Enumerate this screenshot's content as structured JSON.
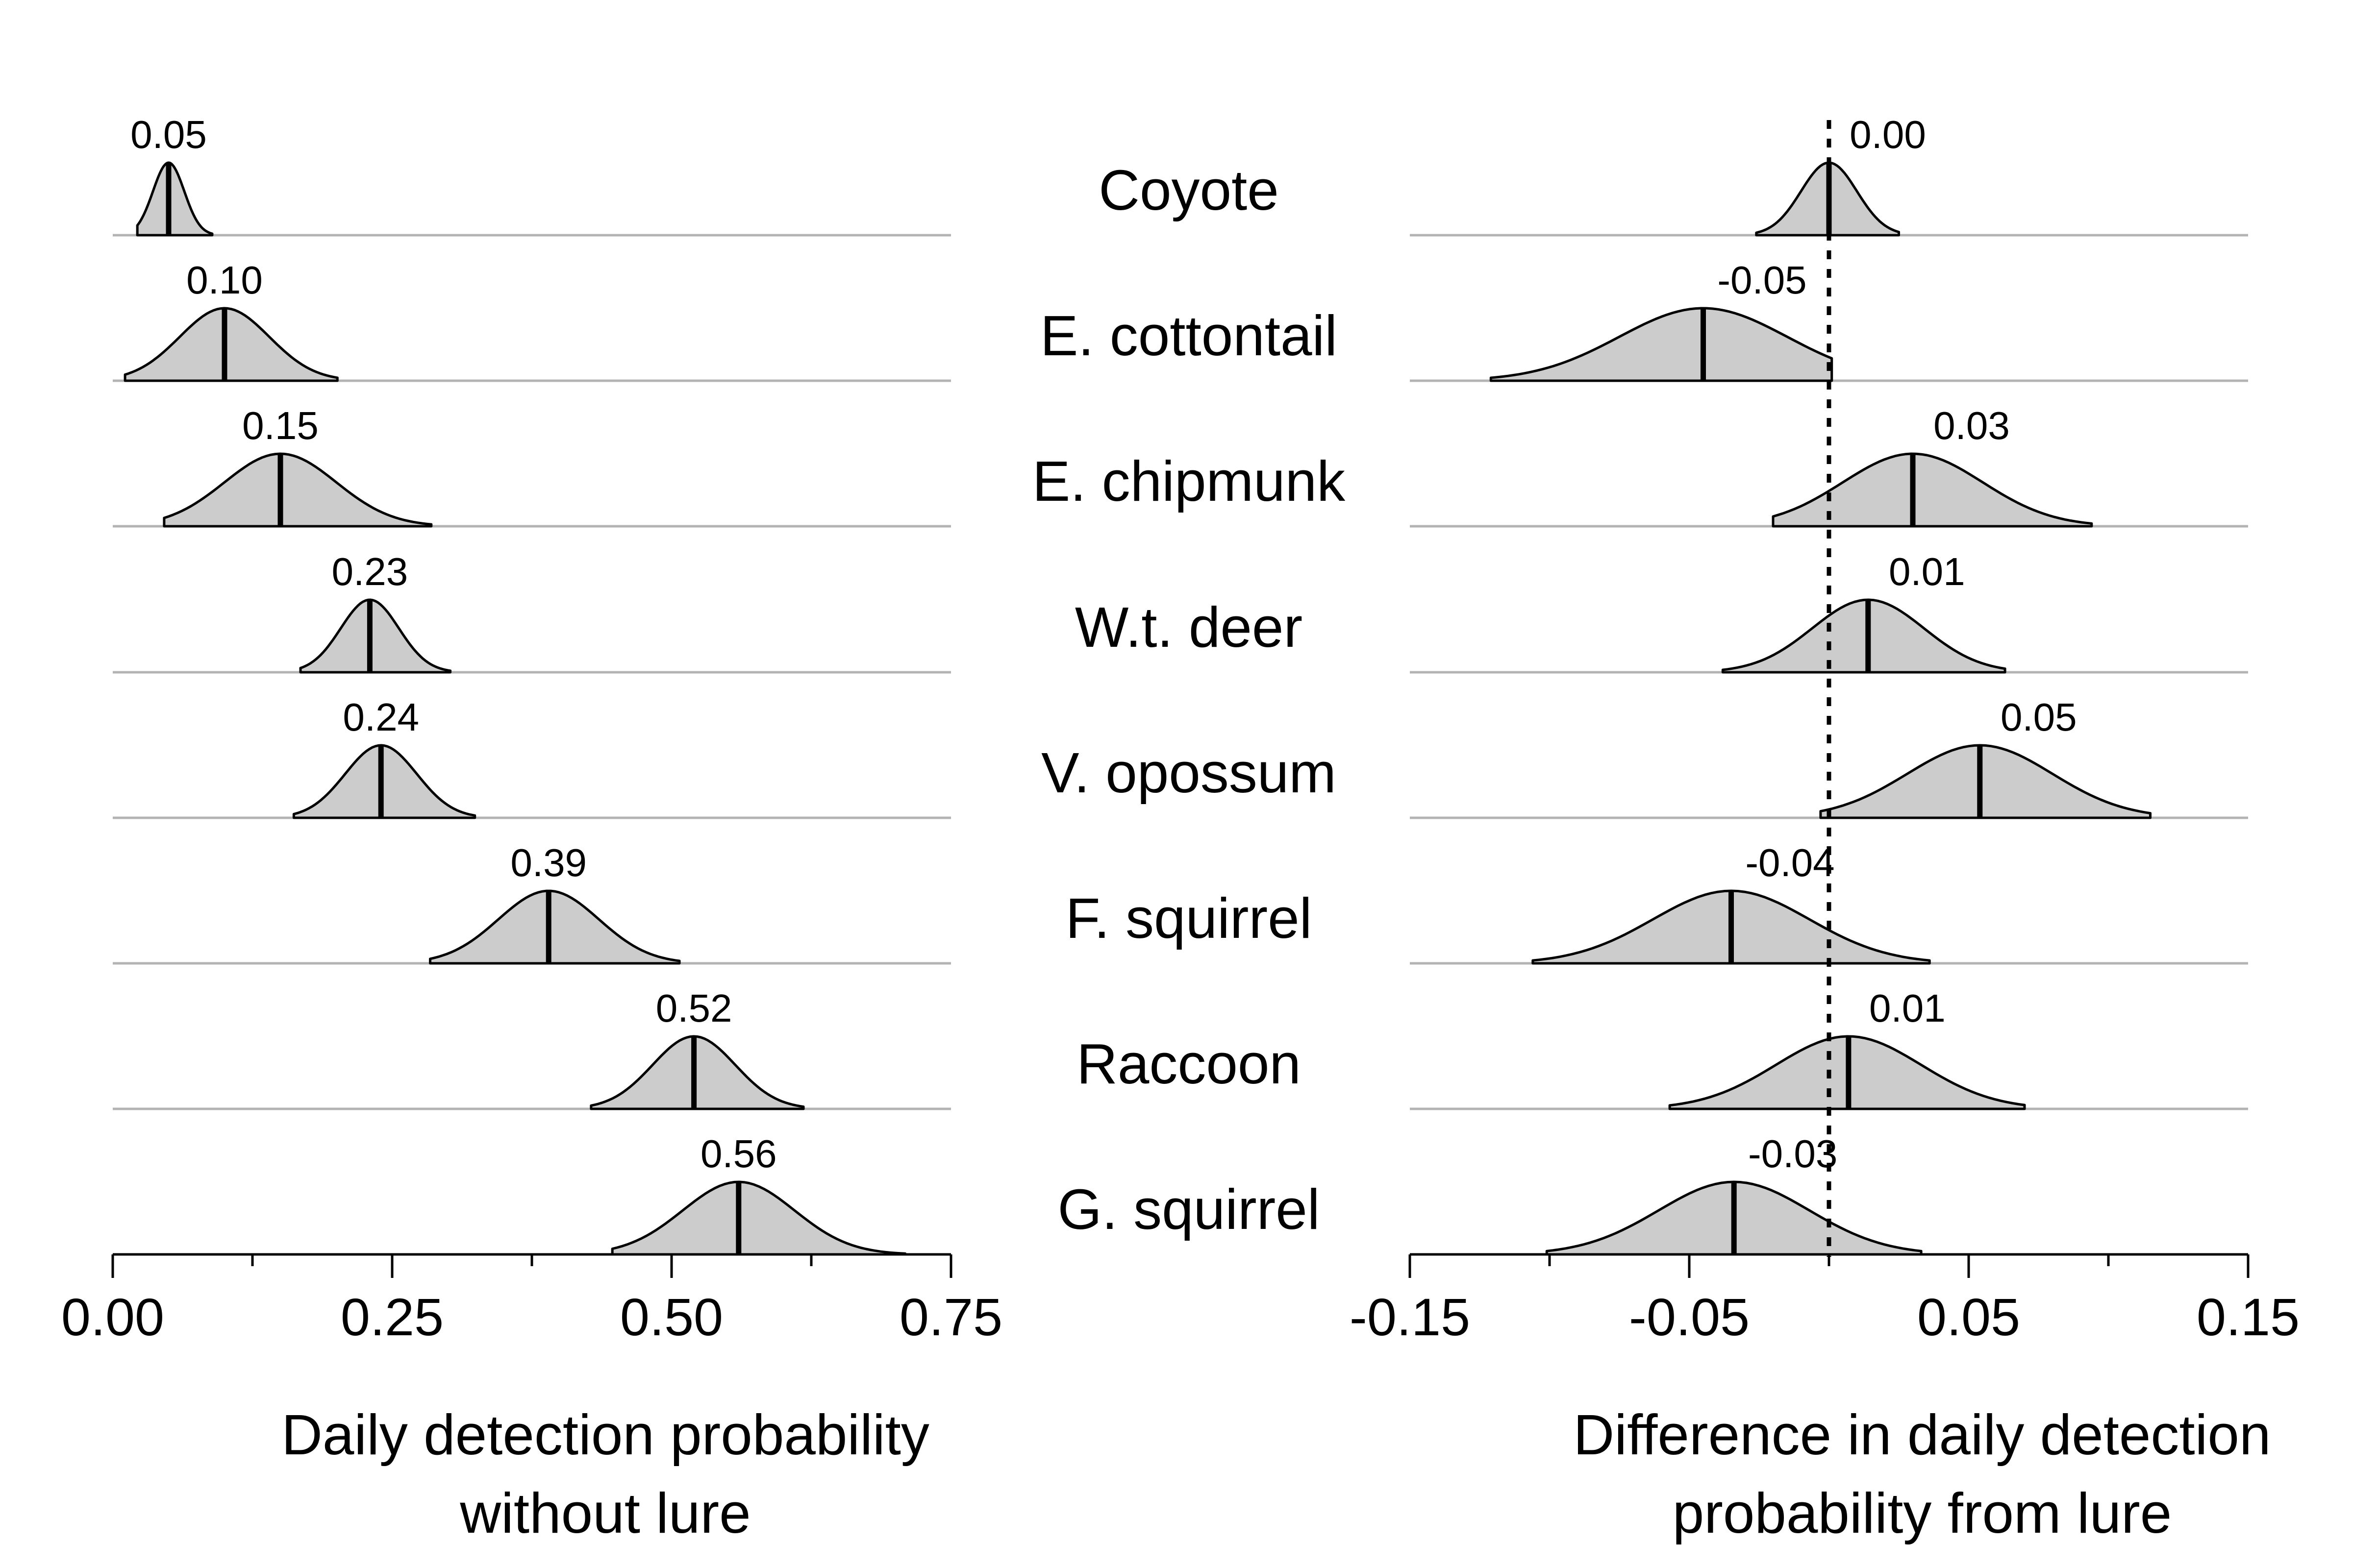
{
  "chart_data": [
    {
      "type": "density",
      "xlabel": [
        "Daily detection probability",
        "without lure"
      ],
      "xlim": [
        0,
        0.75
      ],
      "ticks": [
        0,
        0.125,
        0.25,
        0.375,
        0.5,
        0.625,
        0.75
      ],
      "tick_labels": [
        "0.00",
        "0.25",
        "0.50",
        "0.75"
      ],
      "labeled_ticks": [
        0,
        0.25,
        0.5,
        0.75
      ],
      "series": [
        {
          "name": "Coyote",
          "median": 0.05,
          "label": "0.05",
          "lo": 0.022,
          "hi": 0.089,
          "sd": 0.014
        },
        {
          "name": "E. cottontail",
          "median": 0.1,
          "label": "0.10",
          "lo": 0.011,
          "hi": 0.201,
          "sd": 0.04
        },
        {
          "name": "E. chipmunk",
          "median": 0.15,
          "label": "0.15",
          "lo": 0.046,
          "hi": 0.285,
          "sd": 0.05
        },
        {
          "name": "W.t. deer",
          "median": 0.23,
          "label": "0.23",
          "lo": 0.168,
          "hi": 0.302,
          "sd": 0.026
        },
        {
          "name": "V. opossum",
          "median": 0.24,
          "label": "0.24",
          "lo": 0.162,
          "hi": 0.324,
          "sd": 0.032
        },
        {
          "name": "F. squirrel",
          "median": 0.39,
          "label": "0.39",
          "lo": 0.284,
          "hi": 0.507,
          "sd": 0.045
        },
        {
          "name": "Raccoon",
          "median": 0.52,
          "label": "0.52",
          "lo": 0.428,
          "hi": 0.618,
          "sd": 0.037
        },
        {
          "name": "G. squirrel",
          "median": 0.56,
          "label": "0.56",
          "lo": 0.447,
          "hi": 0.709,
          "sd": 0.05
        }
      ]
    },
    {
      "type": "density",
      "xlabel": [
        "Difference in daily detection",
        "probability from lure"
      ],
      "xlim": [
        -0.15,
        0.15
      ],
      "ticks": [
        -0.15,
        -0.1,
        -0.05,
        0,
        0.05,
        0.1,
        0.15
      ],
      "tick_labels": [
        "-0.15",
        "-0.05",
        "0.05",
        "0.15"
      ],
      "labeled_ticks": [
        -0.15,
        -0.05,
        0.05,
        0.15
      ],
      "reference_line": 0,
      "series": [
        {
          "name": "Coyote",
          "median": 0.0,
          "label": "0.00",
          "lo": -0.026,
          "hi": 0.025,
          "sd": 0.01
        },
        {
          "name": "E. cottontail",
          "median": -0.045,
          "label": "-0.05",
          "lo": -0.121,
          "hi": 0.001,
          "sd": 0.03
        },
        {
          "name": "E. chipmunk",
          "median": 0.03,
          "label": "0.03",
          "lo": -0.02,
          "hi": 0.094,
          "sd": 0.025
        },
        {
          "name": "W.t. deer",
          "median": 0.014,
          "label": "0.01",
          "lo": -0.038,
          "hi": 0.063,
          "sd": 0.02
        },
        {
          "name": "V. opossum",
          "median": 0.054,
          "label": "0.05",
          "lo": -0.003,
          "hi": 0.115,
          "sd": 0.026
        },
        {
          "name": "F. squirrel",
          "median": -0.035,
          "label": "-0.04",
          "lo": -0.106,
          "hi": 0.036,
          "sd": 0.028
        },
        {
          "name": "Raccoon",
          "median": 0.007,
          "label": "0.01",
          "lo": -0.057,
          "hi": 0.07,
          "sd": 0.026
        },
        {
          "name": "G. squirrel",
          "median": -0.034,
          "label": "-0.03",
          "lo": -0.101,
          "hi": 0.033,
          "sd": 0.027
        }
      ]
    }
  ],
  "species_labels": [
    "Coyote",
    "E. cottontail",
    "E. chipmunk",
    "W.t. deer",
    "V. opossum",
    "F. squirrel",
    "Raccoon",
    "G. squirrel"
  ]
}
